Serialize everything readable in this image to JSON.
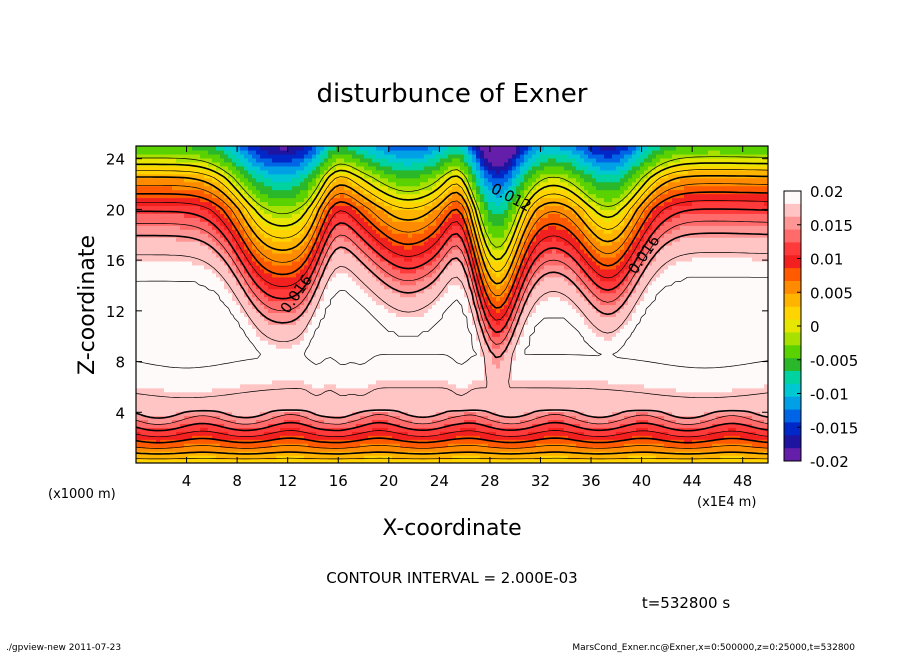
{
  "chart_data": {
    "type": "contour",
    "title": "disturbunce of Exner",
    "xlabel": "X-coordinate",
    "ylabel": "Z-coordinate",
    "x_unit_note": "(x1E4 m)",
    "y_unit_note": "(x1000 m)",
    "x_ticks": [
      "4",
      "8",
      "12",
      "16",
      "20",
      "24",
      "28",
      "32",
      "36",
      "40",
      "44",
      "48"
    ],
    "y_ticks": [
      "4",
      "8",
      "12",
      "16",
      "20",
      "24"
    ],
    "xlim": [
      0,
      50
    ],
    "ylim": [
      0,
      25
    ],
    "contour_interval_text": "CONTOUR INTERVAL = 2.000E-03",
    "contour_labels": [
      {
        "text": "0.012",
        "x": 29.5,
        "y": 20.6,
        "angle": 28
      },
      {
        "text": "0.016",
        "x": 13.0,
        "y": 13.1,
        "angle": -55
      },
      {
        "text": "0.016",
        "x": 40.5,
        "y": 16.2,
        "angle": -55
      }
    ],
    "colorbar": {
      "labels": [
        "0.02",
        "0.015",
        "0.01",
        "0.005",
        "0",
        "-0.005",
        "-0.01",
        "-0.015",
        "-0.02"
      ],
      "colors": [
        "#fffafa",
        "#ffc4c4",
        "#ff9696",
        "#ff6a6a",
        "#ff3a3a",
        "#f32020",
        "#ff5a00",
        "#ff8c00",
        "#ffb400",
        "#ffd400",
        "#e6e600",
        "#a8e000",
        "#5ad200",
        "#2ab82a",
        "#00d2a0",
        "#00c8d2",
        "#00a0e6",
        "#0064e6",
        "#0028c8",
        "#1e14a0",
        "#641eaa"
      ]
    },
    "time_label": "t=532800 s",
    "footer_left": "./gpview-new  2011-07-23",
    "footer_right": "MarsCond_Exner.nc@Exner,x=0:500000,z=0:25000,t=532800"
  }
}
